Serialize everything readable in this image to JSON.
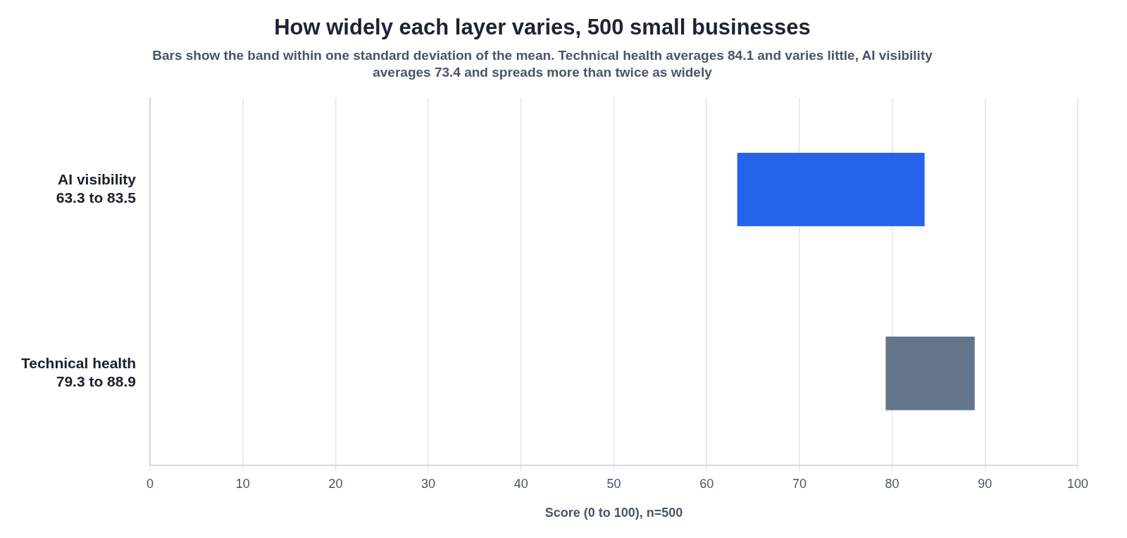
{
  "chart_data": {
    "type": "bar",
    "orientation": "horizontal",
    "title": "How widely each layer varies, 500 small businesses",
    "subtitle": "Bars show the band within one standard deviation of the mean. Technical health averages 84.1 and varies little, AI visibility averages 73.4 and spreads more than twice as widely",
    "categories": [
      "AI visibility\n63.3 to 83.5",
      "Technical health\n79.3 to 88.9"
    ],
    "base": [
      63.3,
      79.3
    ],
    "values": [
      20.2,
      9.6
    ],
    "colors": [
      "#2563eb",
      "#64748b"
    ],
    "xlabel": "Score (0 to 100), n=500",
    "xlim": [
      0,
      100
    ],
    "xticks": [
      0,
      10,
      20,
      30,
      40,
      50,
      60,
      70,
      80,
      90,
      100
    ],
    "grid": "x",
    "legend": false
  }
}
